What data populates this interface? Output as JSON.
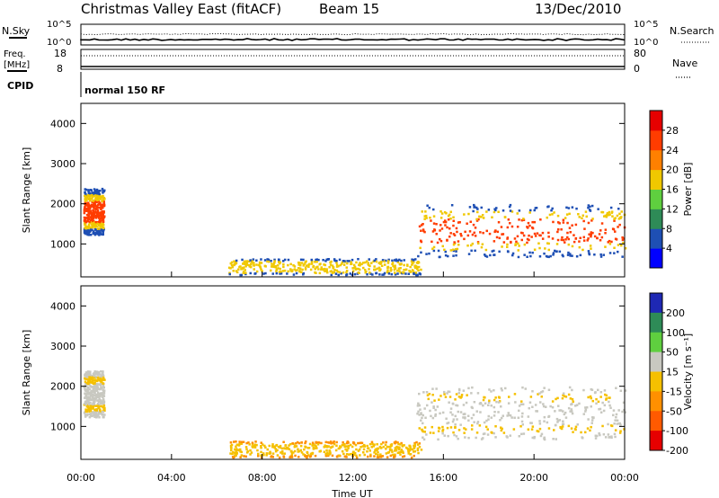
{
  "header": {
    "title": "Christmas Valley East (fitACF)",
    "beam": "Beam 15",
    "date": "13/Dec/2010"
  },
  "top_panels": {
    "nsky_label": "N.Sky",
    "nsky_ticks": [
      "10^5",
      "10^0"
    ],
    "nsearch_label": "N.Search",
    "nsearch_ticks": [
      "10^5",
      "10^0"
    ],
    "freq_label": "Freq.",
    "freq_unit": "[MHz]",
    "freq_ticks": [
      "18",
      "8"
    ],
    "nave_label": "Nave",
    "nave_ticks": [
      "80",
      "0"
    ],
    "cpid_label": "CPID",
    "cpid_value": "normal 150 RF"
  },
  "chart_data": [
    {
      "type": "heatmap",
      "name": "power-panel",
      "xlabel": "",
      "ylabel": "Slant Range [km]",
      "x_range": [
        0,
        24
      ],
      "y_range": [
        180,
        4500
      ],
      "y_ticks": [
        "1000",
        "2000",
        "3000",
        "4000"
      ],
      "colorbar": {
        "label": "Power [dB]",
        "ticks": [
          "4",
          "8",
          "12",
          "16",
          "20",
          "24",
          "28"
        ],
        "colors": [
          "#0000ff",
          "#1e4fb4",
          "#2e8b57",
          "#5fcf3f",
          "#f0c800",
          "#ff8000",
          "#ff3c00",
          "#e60000"
        ]
      },
      "regions": [
        {
          "x0": 0.1,
          "x1": 1.0,
          "y0": 1250,
          "y1": 2400,
          "core": "#ff3c00",
          "edge": "#1e4fb4"
        },
        {
          "x0": 14.8,
          "x1": 24.0,
          "y0": 700,
          "y1": 2000,
          "core": "#ff3c00",
          "edge": "#1e4fb4"
        },
        {
          "x0": 6.5,
          "x1": 15.0,
          "y0": 250,
          "y1": 650,
          "core": "#f0c800",
          "edge": "#1e4fb4"
        }
      ]
    },
    {
      "type": "heatmap",
      "name": "velocity-panel",
      "xlabel": "Time UT",
      "ylabel": "Slant Range [km]",
      "x_range": [
        0,
        24
      ],
      "y_range": [
        180,
        4500
      ],
      "y_ticks": [
        "1000",
        "2000",
        "3000",
        "4000"
      ],
      "x_ticks": [
        "00:00",
        "04:00",
        "08:00",
        "12:00",
        "16:00",
        "20:00",
        "00:00"
      ],
      "colorbar": {
        "label": "Velocity [m s⁻¹]",
        "ticks": [
          "200",
          "100",
          "50",
          "15",
          "-15",
          "-50",
          "-100",
          "-200"
        ],
        "colors": [
          "#1e28b4",
          "#2e8b57",
          "#5fcf3f",
          "#c8c8c0",
          "#f5c000",
          "#ff9000",
          "#ff5a00",
          "#e60000"
        ]
      },
      "regions": [
        {
          "x0": 0.1,
          "x1": 1.0,
          "y0": 1250,
          "y1": 2400,
          "core": "#c8c8c0",
          "edge": "#c8c8c0"
        },
        {
          "x0": 14.8,
          "x1": 24.0,
          "y0": 700,
          "y1": 2000,
          "core": "#c8c8c0",
          "edge": "#c8c8c0"
        },
        {
          "x0": 6.5,
          "x1": 15.0,
          "y0": 250,
          "y1": 650,
          "core": "#f5c000",
          "edge": "#ff9000"
        }
      ]
    }
  ]
}
